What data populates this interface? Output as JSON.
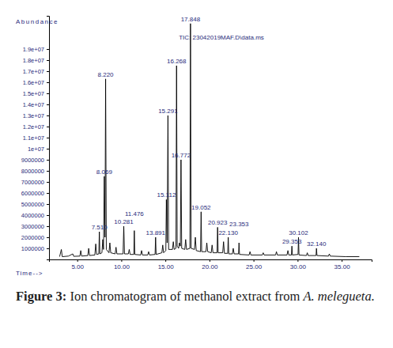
{
  "chart_data": {
    "type": "line",
    "title": "TIC: 23042019MAF.D\\data.ms",
    "y_label": "Abundance",
    "x_label": "Time-->",
    "color": "#000000",
    "caption": {
      "label": "Figure 3:",
      "text": "Ion chromatogram of methanol extract from",
      "species": "A. melegueta."
    },
    "xlim": [
      1.8,
      38.4
    ],
    "ylim": [
      0,
      22000000
    ],
    "xticks": [
      {
        "value": 5,
        "label": "5.00"
      },
      {
        "value": 10,
        "label": "10.00"
      },
      {
        "value": 15,
        "label": "15.00"
      },
      {
        "value": 20,
        "label": "20.00"
      },
      {
        "value": 25,
        "label": "25.00"
      },
      {
        "value": 30,
        "label": "30.00"
      },
      {
        "value": 35,
        "label": "35.00"
      }
    ],
    "yticks": [
      1000000,
      2000000,
      3000000,
      4000000,
      5000000,
      6000000,
      7000000,
      8000000,
      9000000,
      {
        "value": 10000000,
        "label": "1e+07"
      },
      {
        "value": 11000000,
        "label": "1.1e+07"
      },
      {
        "value": 12000000,
        "label": "1.2e+07"
      },
      {
        "value": 13000000,
        "label": "1.3e+07"
      },
      {
        "value": 14000000,
        "label": "1.4e+07"
      },
      {
        "value": 15000000,
        "label": "1.5e+07"
      },
      {
        "value": 16000000,
        "label": "1.6e+07"
      },
      {
        "value": 17000000,
        "label": "1.7e+07"
      },
      {
        "value": 18000000,
        "label": "1.8e+07"
      },
      {
        "value": 19000000,
        "label": "1.9e+07"
      }
    ],
    "x": [
      3.0,
      3.2,
      3.3,
      4.0,
      4.5,
      4.6,
      5.3,
      5.4,
      5.5,
      6.2,
      6.3,
      6.4,
      7.0,
      7.1,
      7.2,
      7.45,
      7.51,
      7.57,
      7.8,
      7.9,
      7.98,
      8.069,
      8.15,
      8.22,
      8.3,
      8.6,
      8.7,
      8.8,
      9.3,
      9.4,
      9.5,
      10.2,
      10.281,
      10.36,
      10.8,
      10.9,
      11.0,
      11.42,
      11.476,
      11.53,
      12.2,
      12.3,
      12.4,
      13.0,
      13.1,
      13.2,
      13.83,
      13.891,
      13.95,
      14.6,
      14.7,
      14.8,
      15.05,
      15.112,
      15.2,
      15.291,
      15.37,
      15.8,
      15.9,
      16.0,
      16.2,
      16.268,
      16.34,
      16.5,
      16.6,
      16.7,
      16.772,
      16.85,
      17.2,
      17.3,
      17.4,
      17.78,
      17.848,
      17.92,
      18.3,
      18.4,
      18.5,
      18.99,
      19.052,
      19.12,
      19.6,
      19.7,
      19.8,
      20.2,
      20.3,
      20.4,
      20.86,
      20.923,
      20.99,
      21.5,
      21.6,
      21.7,
      22.07,
      22.13,
      22.19,
      22.6,
      22.7,
      22.8,
      23.3,
      23.353,
      23.41,
      24.5,
      24.6,
      24.7,
      26.0,
      26.1,
      26.2,
      27.5,
      27.6,
      27.7,
      28.8,
      28.9,
      29.0,
      29.3,
      29.353,
      29.41,
      30.05,
      30.102,
      30.16,
      31.0,
      31.1,
      31.2,
      32.09,
      32.14,
      32.2,
      33.5,
      33.6,
      33.7,
      35.5,
      37.0
    ],
    "values": [
      250000,
      900000,
      250000,
      300000,
      500000,
      280000,
      300000,
      800000,
      300000,
      350000,
      1000000,
      350000,
      400000,
      1400000,
      450000,
      500000,
      2500000,
      500000,
      600000,
      1800000,
      900000,
      7500000,
      2000000,
      16300000,
      900000,
      600000,
      1500000,
      600000,
      500000,
      1100000,
      500000,
      500000,
      3000000,
      500000,
      500000,
      900000,
      450000,
      450000,
      2600000,
      450000,
      400000,
      800000,
      400000,
      400000,
      700000,
      400000,
      450000,
      2000000,
      450000,
      600000,
      1300000,
      600000,
      800000,
      5400000,
      1500000,
      13000000,
      900000,
      900000,
      1600000,
      900000,
      1000000,
      17500000,
      1200000,
      1000000,
      1500000,
      1200000,
      9000000,
      1000000,
      900000,
      1800000,
      900000,
      1000000,
      21300000,
      1000000,
      900000,
      2000000,
      800000,
      700000,
      4300000,
      700000,
      700000,
      1500000,
      700000,
      600000,
      1300000,
      600000,
      600000,
      2900000,
      600000,
      600000,
      1600000,
      550000,
      550000,
      2000000,
      500000,
      500000,
      1000000,
      500000,
      500000,
      1500000,
      450000,
      400000,
      700000,
      400000,
      400000,
      600000,
      400000,
      400000,
      700000,
      400000,
      400000,
      800000,
      400000,
      400000,
      1200000,
      400000,
      450000,
      2000000,
      400000,
      350000,
      600000,
      350000,
      350000,
      1000000,
      350000,
      300000,
      500000,
      300000,
      250000,
      250000
    ],
    "peaks": [
      {
        "label": "7.510",
        "x": 7.51,
        "y": 2500000
      },
      {
        "label": "8.069",
        "x": 8.069,
        "y": 7500000
      },
      {
        "label": "8.220",
        "x": 8.22,
        "y": 16300000
      },
      {
        "label": "10.281",
        "x": 10.281,
        "y": 3000000
      },
      {
        "label": "11.476",
        "x": 11.476,
        "y": 2600000
      },
      {
        "label": "13.891",
        "x": 13.891,
        "y": 2000000
      },
      {
        "label": "15.112",
        "x": 15.112,
        "y": 5400000
      },
      {
        "label": "15.291",
        "x": 15.291,
        "y": 13000000
      },
      {
        "label": "16.268",
        "x": 16.268,
        "y": 17500000
      },
      {
        "label": "16.772",
        "x": 16.772,
        "y": 9000000
      },
      {
        "label": "17.848",
        "x": 17.848,
        "y": 21300000
      },
      {
        "label": "19.052",
        "x": 19.052,
        "y": 4300000
      },
      {
        "label": "20.923",
        "x": 20.923,
        "y": 2900000
      },
      {
        "label": "22.130",
        "x": 22.13,
        "y": 2000000
      },
      {
        "label": "23.353",
        "x": 23.353,
        "y": 1500000
      },
      {
        "label": "30.102",
        "x": 30.102,
        "y": 2000000
      },
      {
        "label": "29.353",
        "x": 29.353,
        "y": 1200000
      },
      {
        "label": "32.140",
        "x": 32.14,
        "y": 1000000
      }
    ]
  }
}
